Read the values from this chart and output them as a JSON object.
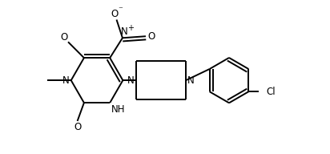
{
  "bg_color": "#ffffff",
  "line_color": "#000000",
  "lw": 1.4,
  "fs": 8.5,
  "figsize": [
    4.12,
    1.92
  ],
  "dpi": 100,
  "xlim": [
    0.0,
    8.5
  ],
  "ylim": [
    -2.2,
    2.4
  ]
}
